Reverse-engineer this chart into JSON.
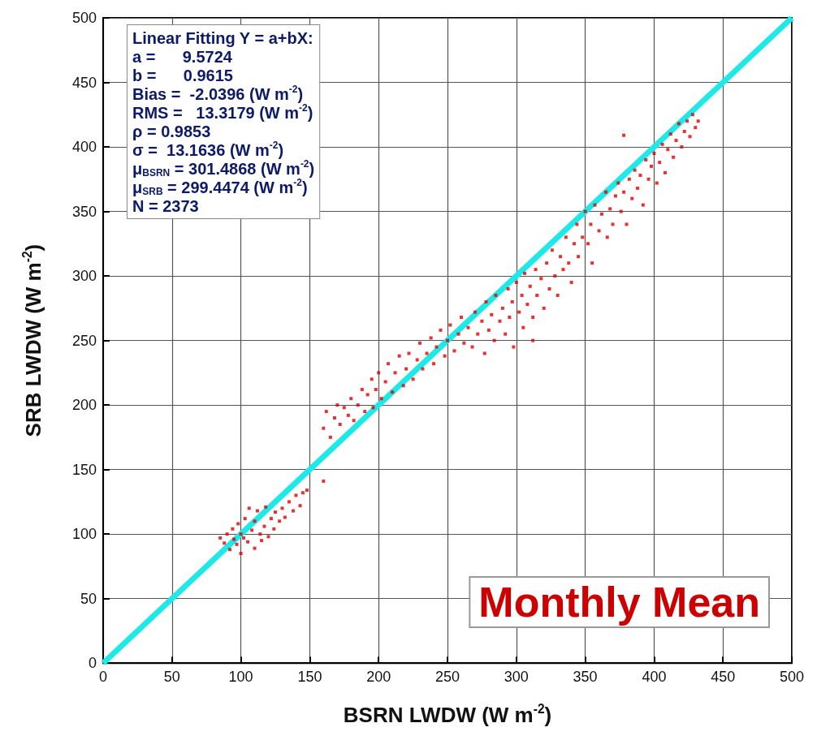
{
  "chart_data": {
    "type": "scatter",
    "xlabel": "BSRN LWDW (W m$^{-2}$)",
    "ylabel": "SRB LWDW (W m$^{-2}$)",
    "xlim": [
      0,
      500
    ],
    "xticks": [
      0,
      50,
      100,
      150,
      200,
      250,
      300,
      350,
      400,
      450,
      500
    ],
    "ylim": [
      0,
      500
    ],
    "yticks": [
      0,
      50,
      100,
      150,
      200,
      250,
      300,
      350,
      400,
      450,
      500
    ],
    "grid": true,
    "series": [
      {
        "color": "#dd0000",
        "marker": "square",
        "x": [
          85,
          88,
          90,
          92,
          94,
          95,
          97,
          98,
          100,
          100,
          102,
          103,
          105,
          106,
          108,
          110,
          110,
          112,
          114,
          115,
          117,
          118,
          120,
          122,
          124,
          125,
          128,
          130,
          132,
          135,
          138,
          140,
          143,
          145,
          148,
          160,
          160,
          162,
          165,
          168,
          170,
          172,
          175,
          178,
          180,
          182,
          185,
          188,
          190,
          192,
          195,
          196,
          198,
          200,
          202,
          205,
          207,
          210,
          212,
          215,
          218,
          220,
          222,
          225,
          228,
          230,
          232,
          235,
          238,
          240,
          242,
          245,
          248,
          250,
          252,
          255,
          258,
          260,
          262,
          265,
          268,
          270,
          272,
          275,
          277,
          278,
          280,
          282,
          284,
          285,
          288,
          290,
          292,
          294,
          295,
          297,
          298,
          300,
          302,
          304,
          305,
          306,
          308,
          310,
          312,
          312,
          314,
          315,
          318,
          320,
          322,
          324,
          326,
          328,
          330,
          332,
          334,
          336,
          338,
          340,
          342,
          344,
          345,
          348,
          350,
          352,
          354,
          355,
          357,
          360,
          362,
          365,
          366,
          368,
          370,
          372,
          374,
          376,
          378,
          378,
          380,
          382,
          384,
          386,
          388,
          390,
          392,
          394,
          396,
          398,
          400,
          402,
          404,
          406,
          408,
          410,
          412,
          414,
          416,
          418,
          420,
          422,
          424,
          426,
          428,
          430,
          432
        ],
        "values": [
          97,
          93,
          100,
          88,
          104,
          96,
          92,
          108,
          85,
          100,
          97,
          112,
          94,
          120,
          103,
          89,
          110,
          118,
          100,
          95,
          106,
          121,
          98,
          112,
          104,
          117,
          110,
          120,
          113,
          125,
          118,
          130,
          122,
          132,
          134,
          141,
          182,
          195,
          175,
          190,
          200,
          185,
          198,
          192,
          205,
          188,
          200,
          212,
          195,
          208,
          220,
          198,
          212,
          225,
          205,
          218,
          232,
          210,
          225,
          238,
          215,
          228,
          240,
          220,
          235,
          248,
          228,
          240,
          252,
          232,
          245,
          258,
          238,
          250,
          262,
          242,
          255,
          268,
          248,
          260,
          245,
          272,
          255,
          265,
          240,
          280,
          258,
          270,
          250,
          285,
          265,
          275,
          255,
          290,
          268,
          280,
          245,
          295,
          272,
          285,
          260,
          302,
          278,
          292,
          268,
          250,
          305,
          285,
          298,
          275,
          310,
          290,
          320,
          300,
          285,
          315,
          305,
          330,
          310,
          295,
          325,
          340,
          315,
          330,
          350,
          325,
          340,
          310,
          355,
          335,
          348,
          365,
          330,
          352,
          340,
          362,
          372,
          350,
          365,
          409,
          340,
          375,
          360,
          382,
          368,
          378,
          355,
          390,
          375,
          385,
          395,
          372,
          388,
          402,
          380,
          398,
          410,
          392,
          405,
          418,
          400,
          412,
          420,
          408,
          425,
          415,
          420
        ]
      },
      {
        "type": "line",
        "color": "#1ee8e8",
        "x": [
          0,
          500
        ],
        "values": [
          0,
          500
        ]
      }
    ],
    "annotations": [
      "Linear Fitting Y = a+bX:\na =      9.5724\nb =      0.9615\nBias =  -2.0396 (W m$^{-2}$)\nRMS =   13.3179 (W m$^{-2}$)\nρ = 0.9853\nσ =  13.1636 (W m$^{-2}$)\nμ$_{BSRN}$ = 301.4868 (W m$^{-2}$)\nμ$_{SRB}$ = 299.4474 (W m$^{-2}$)\nN = 2373",
      "Monthly Mean"
    ]
  }
}
